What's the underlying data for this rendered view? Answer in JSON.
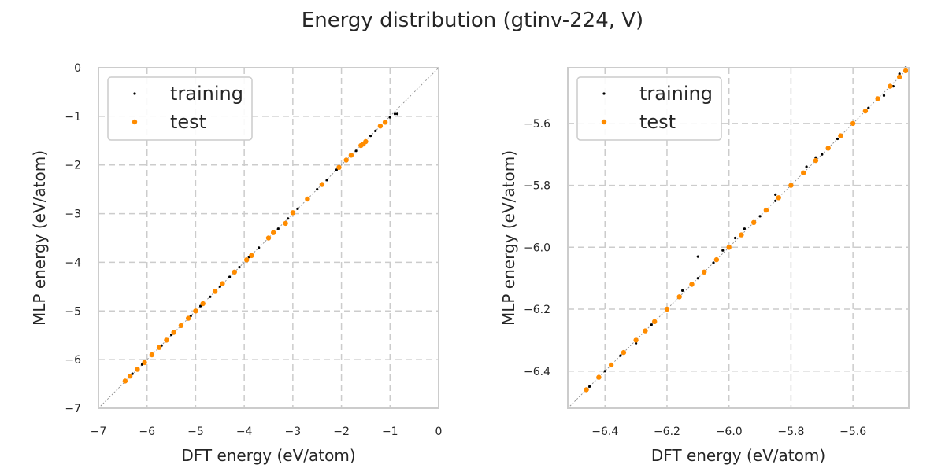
{
  "figure": {
    "title": "Energy distribution (gtinv-224, V)"
  },
  "colors": {
    "training": "#000000",
    "test": "#ff8c00",
    "grid": "#cccccc",
    "frame": "#cccccc"
  },
  "chart_data": [
    {
      "type": "scatter",
      "xlabel": "DFT energy (eV/atom)",
      "ylabel": "MLP energy (eV/atom)",
      "xlim": [
        -7,
        0
      ],
      "ylim": [
        -7,
        0
      ],
      "xticks": [
        -7,
        -6,
        -5,
        -4,
        -3,
        -2,
        -1,
        0
      ],
      "yticks": [
        -7,
        -6,
        -5,
        -4,
        -3,
        -2,
        -1,
        0
      ],
      "xtick_labels": [
        "−7",
        "−6",
        "−5",
        "−4",
        "−3",
        "−2",
        "−1",
        "0"
      ],
      "ytick_labels": [
        "−7",
        "−6",
        "−5",
        "−4",
        "−3",
        "−2",
        "−1",
        "0"
      ],
      "grid": true,
      "legend_position": "top-left",
      "reference_line": "y = x",
      "series": [
        {
          "name": "training",
          "color": "#000000",
          "marker": "dot",
          "x": [
            -6.45,
            -6.3,
            -6.1,
            -5.9,
            -5.7,
            -5.5,
            -5.3,
            -5.1,
            -4.9,
            -4.7,
            -4.5,
            -4.3,
            -4.1,
            -3.9,
            -3.7,
            -3.5,
            -3.3,
            -3.1,
            -2.9,
            -2.7,
            -2.5,
            -2.3,
            -2.1,
            -1.9,
            -1.7,
            -1.5,
            -1.4,
            -1.3,
            -1.2,
            -1.1,
            -1.0,
            -0.9,
            -0.85
          ],
          "y": [
            -6.44,
            -6.29,
            -6.1,
            -5.9,
            -5.71,
            -5.49,
            -5.3,
            -5.1,
            -4.9,
            -4.71,
            -4.5,
            -4.3,
            -4.1,
            -3.89,
            -3.7,
            -3.5,
            -3.31,
            -3.1,
            -2.9,
            -2.69,
            -2.5,
            -2.31,
            -2.1,
            -1.9,
            -1.71,
            -1.52,
            -1.4,
            -1.3,
            -1.22,
            -1.1,
            -1.02,
            -0.95,
            -0.95
          ]
        },
        {
          "name": "test",
          "color": "#ff8c00",
          "marker": "dot",
          "x": [
            -6.45,
            -6.35,
            -6.2,
            -6.05,
            -5.9,
            -5.75,
            -5.6,
            -5.45,
            -5.3,
            -5.15,
            -5.0,
            -4.85,
            -4.6,
            -4.45,
            -4.2,
            -3.95,
            -3.85,
            -3.5,
            -3.4,
            -3.15,
            -3.0,
            -2.7,
            -2.4,
            -2.05,
            -1.9,
            -1.8,
            -1.6,
            -1.55,
            -1.5,
            -1.2,
            -1.1
          ],
          "y": [
            -6.44,
            -6.34,
            -6.2,
            -6.06,
            -5.9,
            -5.75,
            -5.6,
            -5.44,
            -5.3,
            -5.15,
            -5.0,
            -4.85,
            -4.6,
            -4.44,
            -4.2,
            -3.95,
            -3.86,
            -3.5,
            -3.39,
            -3.2,
            -2.98,
            -2.7,
            -2.4,
            -2.05,
            -1.9,
            -1.8,
            -1.6,
            -1.57,
            -1.52,
            -1.2,
            -1.12
          ]
        }
      ]
    },
    {
      "type": "scatter",
      "xlabel": "DFT energy (eV/atom)",
      "ylabel": "MLP energy (eV/atom)",
      "xlim": [
        -6.52,
        -5.42
      ],
      "ylim": [
        -6.52,
        -5.42
      ],
      "xticks": [
        -6.4,
        -6.2,
        -6.0,
        -5.8,
        -5.6
      ],
      "yticks": [
        -6.4,
        -6.2,
        -6.0,
        -5.8,
        -5.6
      ],
      "xtick_labels": [
        "−6.4",
        "−6.2",
        "−6.0",
        "−5.8",
        "−5.6"
      ],
      "ytick_labels": [
        "−6.4",
        "−6.2",
        "−6.0",
        "−5.8",
        "−5.6"
      ],
      "grid": true,
      "legend_position": "top-left",
      "reference_line": "y = x",
      "series": [
        {
          "name": "training",
          "color": "#000000",
          "marker": "dot",
          "x": [
            -6.45,
            -6.4,
            -6.35,
            -6.3,
            -6.25,
            -6.2,
            -6.15,
            -6.1,
            -6.05,
            -6.0,
            -5.95,
            -5.9,
            -5.85,
            -5.8,
            -5.75,
            -5.7,
            -5.65,
            -5.6,
            -5.55,
            -5.5,
            -5.47,
            -5.45,
            -5.43,
            -6.1,
            -6.02,
            -5.98,
            -5.85,
            -5.72
          ],
          "y": [
            -6.45,
            -6.4,
            -6.35,
            -6.31,
            -6.25,
            -6.2,
            -6.14,
            -6.1,
            -6.05,
            -6.0,
            -5.94,
            -5.9,
            -5.85,
            -5.8,
            -5.74,
            -5.7,
            -5.65,
            -5.6,
            -5.55,
            -5.51,
            -5.48,
            -5.44,
            -5.42,
            -6.03,
            -6.01,
            -5.97,
            -5.83,
            -5.71
          ]
        },
        {
          "name": "test",
          "color": "#ff8c00",
          "marker": "dot",
          "x": [
            -6.46,
            -6.42,
            -6.38,
            -6.34,
            -6.3,
            -6.27,
            -6.24,
            -6.2,
            -6.16,
            -6.12,
            -6.08,
            -6.04,
            -6.0,
            -5.96,
            -5.92,
            -5.88,
            -5.84,
            -5.8,
            -5.76,
            -5.72,
            -5.68,
            -5.64,
            -5.6,
            -5.56,
            -5.52,
            -5.48,
            -5.45,
            -5.43
          ],
          "y": [
            -6.46,
            -6.42,
            -6.38,
            -6.34,
            -6.3,
            -6.27,
            -6.24,
            -6.2,
            -6.16,
            -6.12,
            -6.08,
            -6.04,
            -6.0,
            -5.96,
            -5.92,
            -5.88,
            -5.84,
            -5.8,
            -5.76,
            -5.72,
            -5.68,
            -5.64,
            -5.6,
            -5.56,
            -5.52,
            -5.48,
            -5.45,
            -5.43
          ]
        }
      ]
    }
  ]
}
